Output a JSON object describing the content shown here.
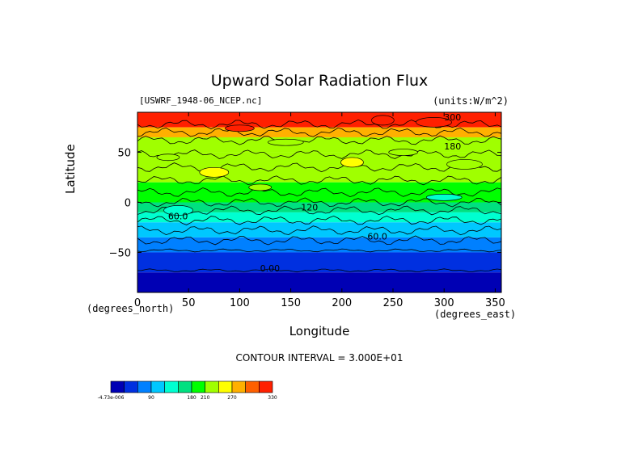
{
  "chart_data": {
    "type": "heatmap",
    "title": "Upward Solar Radiation Flux",
    "source_label": "[USWRF_1948-06_NCEP.nc]",
    "units_label": "(units:W/m^2)",
    "xlabel": "Longitude",
    "ylabel": "Latitude",
    "x_unit_label": "(degrees_east)",
    "y_unit_label": "(degrees_north)",
    "xlim": [
      0,
      356
    ],
    "ylim": [
      -90,
      90
    ],
    "x_ticks": [
      0,
      50,
      100,
      150,
      200,
      250,
      300,
      350
    ],
    "y_ticks": [
      -50,
      0,
      50
    ],
    "contour_interval_text": "CONTOUR INTERVAL = 3.000E+01",
    "contour_labels": [
      "300",
      "180",
      "120",
      "60.0",
      "60.0",
      "0.00"
    ],
    "latitude_bands": [
      {
        "lat": [
          75,
          90
        ],
        "value": 300
      },
      {
        "lat": [
          65,
          75
        ],
        "value": 240
      },
      {
        "lat": [
          50,
          65
        ],
        "value": 180
      },
      {
        "lat": [
          20,
          50
        ],
        "value": 180
      },
      {
        "lat": [
          0,
          20
        ],
        "value": 150
      },
      {
        "lat": [
          -10,
          0
        ],
        "value": 120
      },
      {
        "lat": [
          -20,
          -10
        ],
        "value": 90
      },
      {
        "lat": [
          -35,
          -20
        ],
        "value": 60
      },
      {
        "lat": [
          -50,
          -35
        ],
        "value": 30
      },
      {
        "lat": [
          -70,
          -50
        ],
        "value": 0
      },
      {
        "lat": [
          -90,
          -70
        ],
        "value": -0.000473
      }
    ],
    "colorbar": {
      "tick_labels": [
        "-4.73e-006",
        "90",
        "180",
        "210",
        "270",
        "330"
      ],
      "colors": [
        "#0000b4",
        "#0030e0",
        "#0080ff",
        "#00c8ff",
        "#00ffd0",
        "#00e080",
        "#00ff00",
        "#a0ff00",
        "#ffff00",
        "#ffb000",
        "#ff6000",
        "#ff2000"
      ]
    }
  }
}
